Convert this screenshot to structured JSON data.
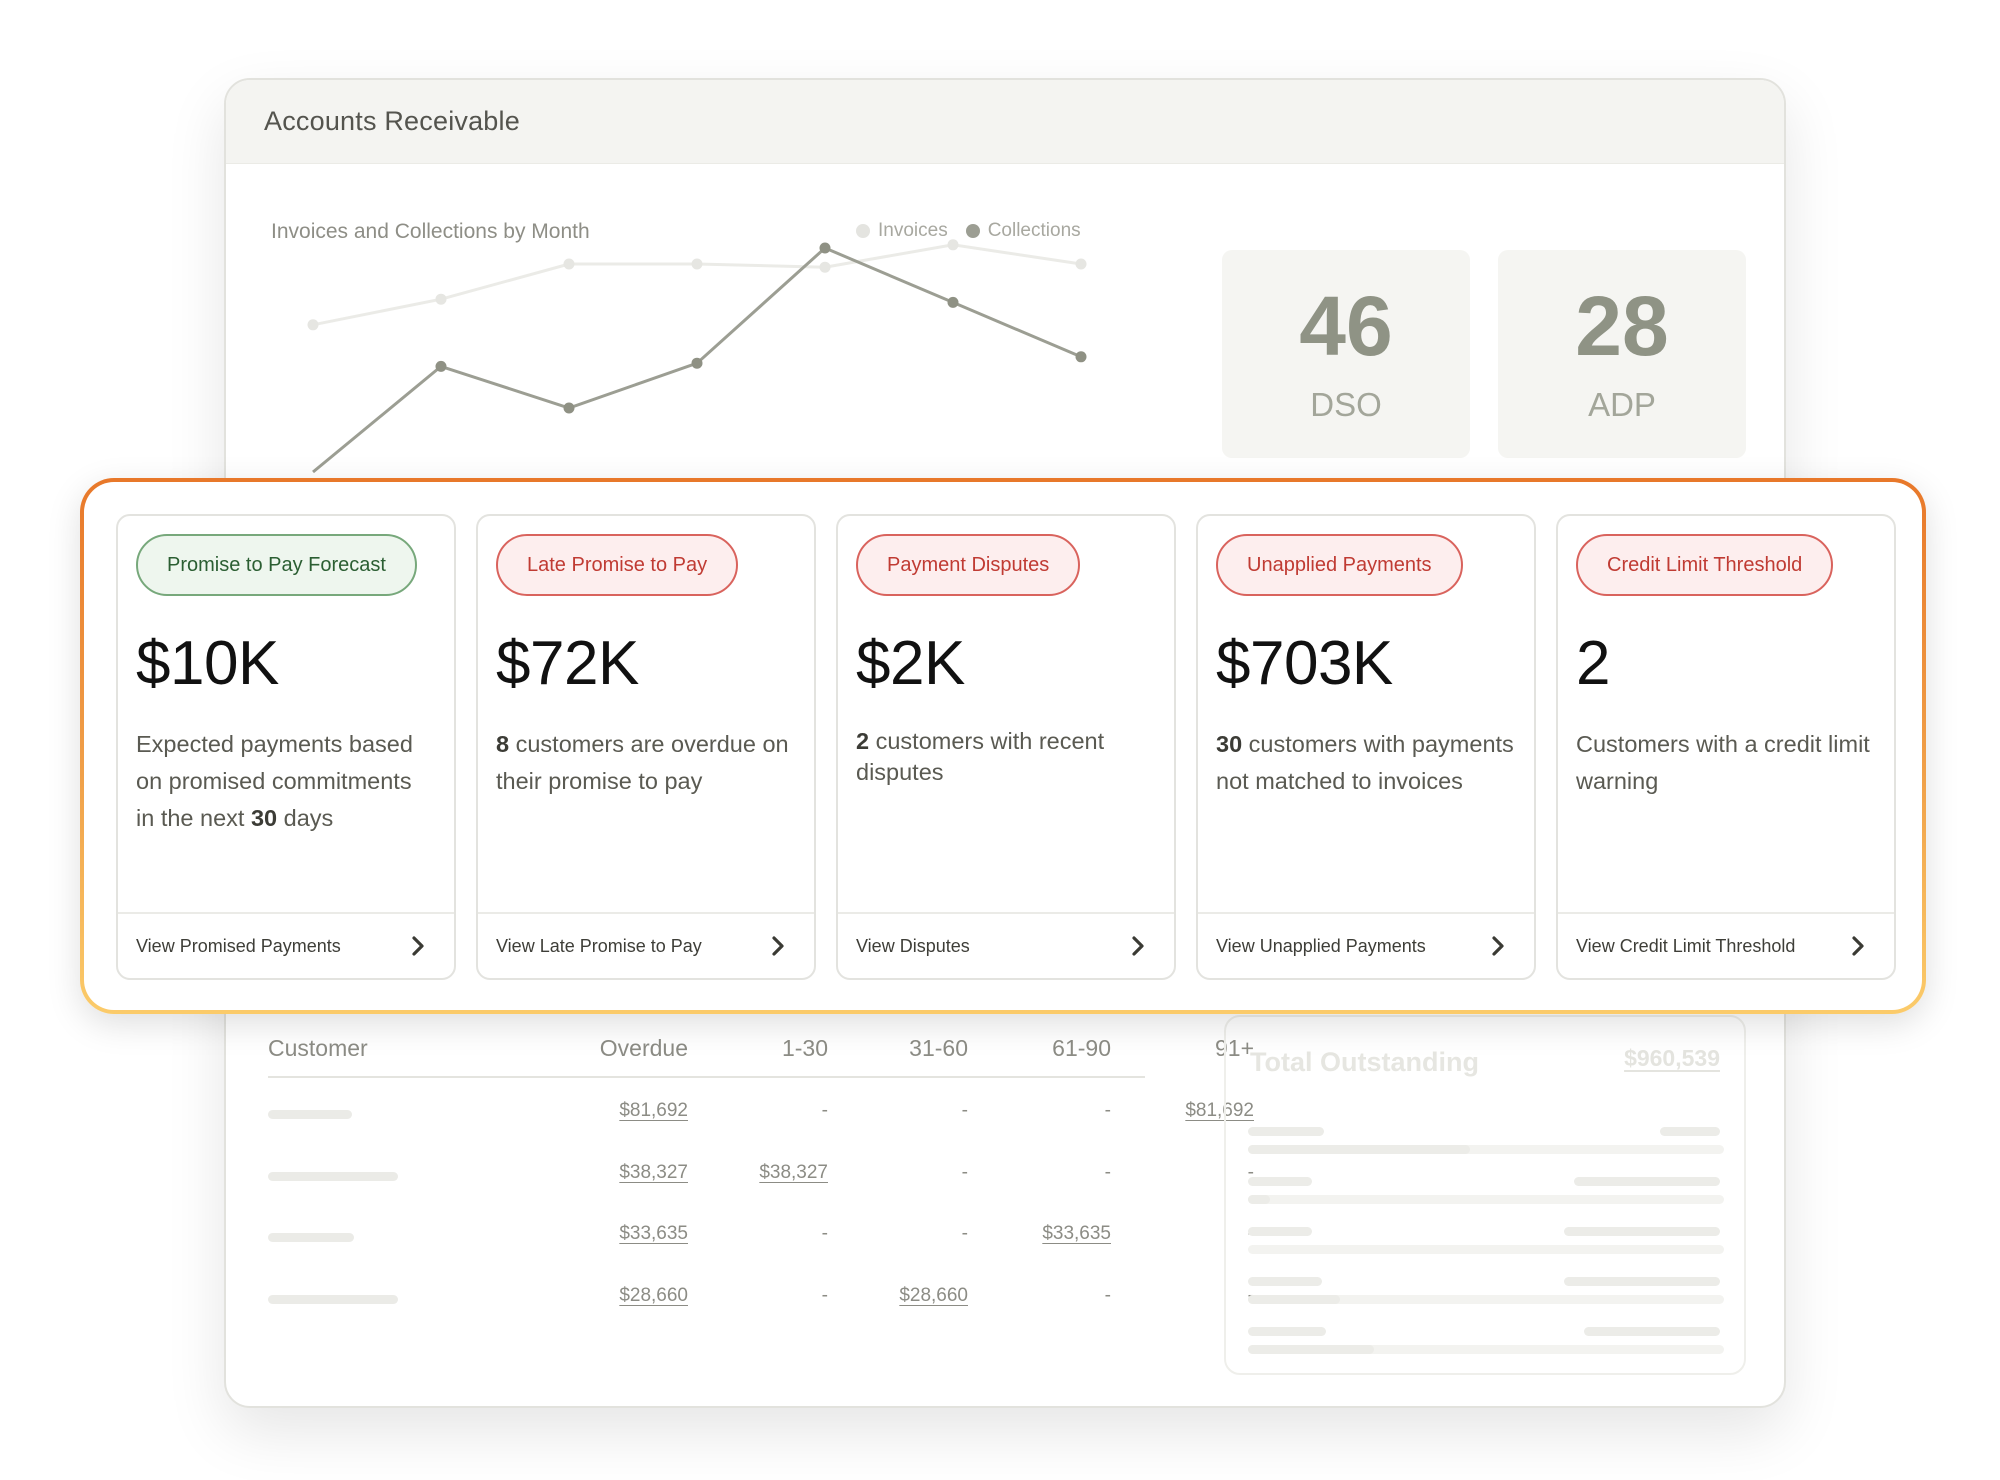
{
  "window": {
    "title": "Accounts Receivable"
  },
  "chart": {
    "title": "Invoices and Collections by Month",
    "legend": [
      {
        "label": "Invoices",
        "color": "#e4e4e0"
      },
      {
        "label": "Collections",
        "color": "#9c9e93"
      }
    ]
  },
  "chart_data": {
    "type": "line",
    "title": "Invoices and Collections by Month",
    "series": [
      {
        "name": "Invoices",
        "values": [
          0.36,
          0.44,
          0.55,
          0.55,
          0.54,
          0.61,
          0.55
        ]
      },
      {
        "name": "Collections",
        "values": [
          -0.1,
          0.23,
          0.1,
          0.24,
          0.6,
          0.43,
          0.26
        ]
      }
    ],
    "xlabel": "",
    "ylabel": "",
    "grid": false,
    "legend": "top-right"
  },
  "kpis": [
    {
      "value": "46",
      "label": "DSO"
    },
    {
      "value": "28",
      "label": "ADP"
    }
  ],
  "cards": [
    {
      "badge": "Promise to Pay Forecast",
      "badge_style": "green",
      "value": "$10K",
      "desc_pre": "Expected payments based on promised commitments in the next ",
      "desc_bold": "30",
      "desc_post": " days",
      "footer": "View Promised Payments"
    },
    {
      "badge": "Late Promise to Pay",
      "badge_style": "red",
      "value": "$72K",
      "desc_pre": "",
      "desc_bold": "8",
      "desc_post": " customers are overdue on their promise to pay",
      "footer": "View Late Promise to Pay"
    },
    {
      "badge": "Payment Disputes",
      "badge_style": "red",
      "value": "$2K",
      "desc_pre": "",
      "desc_bold": "2",
      "desc_post": " customers with recent disputes",
      "footer": "View Disputes"
    },
    {
      "badge": "Unapplied Payments",
      "badge_style": "red",
      "value": "$703K",
      "desc_pre": "",
      "desc_bold": "30",
      "desc_post": " customers with payments not matched to invoices",
      "footer": "View Unapplied Payments"
    },
    {
      "badge": "Credit Limit Threshold",
      "badge_style": "red",
      "value": "2",
      "desc_pre": "Customers with a credit limit warning",
      "desc_bold": "",
      "desc_post": "",
      "footer": "View Credit Limit Threshold"
    }
  ],
  "table": {
    "headers": [
      "Customer",
      "Overdue",
      "1-30",
      "31-60",
      "61-90",
      "91+"
    ],
    "rows": [
      [
        "",
        "$81,692",
        "-",
        "-",
        "-",
        "$81,692"
      ],
      [
        "",
        "$38,327",
        "$38,327",
        "-",
        "-",
        "-"
      ],
      [
        "",
        "$33,635",
        "-",
        "-",
        "$33,635",
        "-"
      ],
      [
        "",
        "$28,660",
        "-",
        "$28,660",
        "-",
        "-"
      ]
    ]
  },
  "totals": {
    "label": "Total Outstanding",
    "value": "$960,539"
  },
  "colors": {
    "accent_orange": "#e8782a",
    "accent_yellow": "#fbcb6a",
    "green": "#77a87b",
    "red": "#d9635d"
  }
}
